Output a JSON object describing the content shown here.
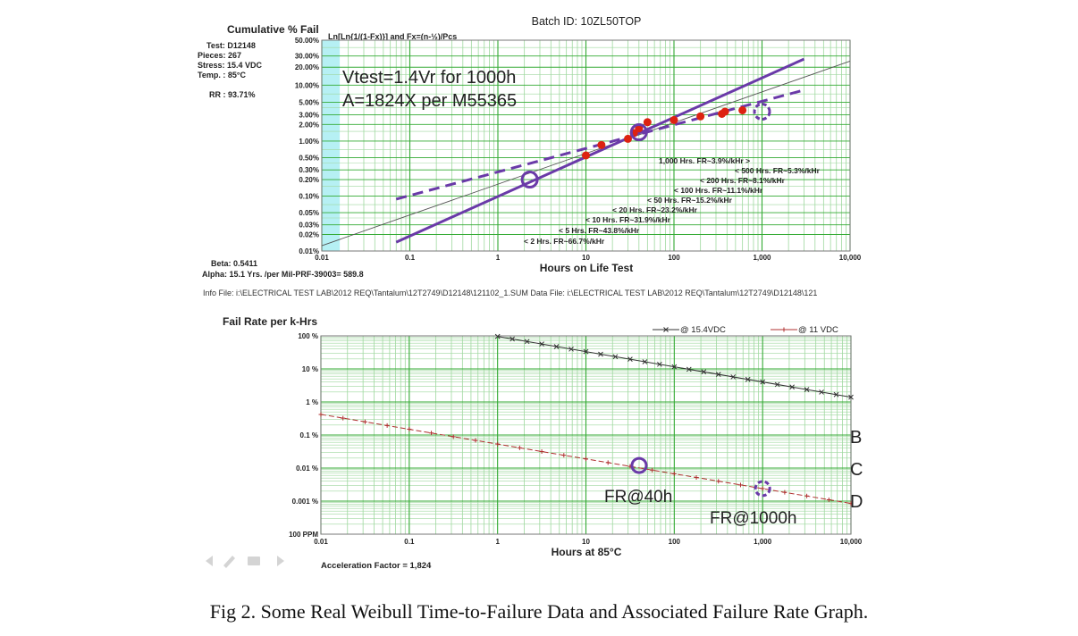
{
  "colors": {
    "grid_major": "#33aa33",
    "grid_minor": "#9fd89f",
    "cyan_band": "#b6f0f4",
    "purple": "#6a3aa8",
    "red_dot": "#dd2211",
    "fit_line": "#555555",
    "series_154": "#333333",
    "series_11": "#b03030"
  },
  "top": {
    "batch_id": "Batch ID: 10ZL50TOP",
    "ylabel": "Cumulative % Fail",
    "formula": "Ln[Ln{1/(1-Fx)}] and Fx=(n-½)/Pcs",
    "test": "Test: D12148",
    "pieces": "Pieces: 267",
    "stress": "Stress: 15.4 VDC",
    "temp": "Temp. : 85°C",
    "rr": "RR : 93.71%",
    "beta": "Beta: 0.5411",
    "alpha": "Alpha: 15.1 Yrs. /per Mil-PRF-39003= 589.8",
    "xlabel": "Hours on Life Test",
    "annotation_line1": "Vtest=1.4Vr for 1000h",
    "annotation_line2": "A=1824X per M55365",
    "info_line": "Info File: i:\\ELECTRICAL TEST LAB\\2012 REQ\\Tantalum\\12T2749\\D12148\\121102_1.SUM    Data File: i:\\ELECTRICAL TEST LAB\\2012 REQ\\Tantalum\\12T2749\\D12148\\121",
    "fr_notes": [
      "1,000 Hrs. FR~3.9%/kHr >",
      "< 500 Hrs. FR~5.3%/kHr",
      "< 200 Hrs. FR~8.1%/kHr",
      "< 100 Hrs. FR~11.1%/kHr",
      "< 50 Hrs. FR~15.2%/kHr",
      "< 20 Hrs. FR~23.2%/kHr",
      "< 10 Hrs. FR~31.9%/kHr",
      "< 5 Hrs. FR~43.8%/kHr",
      "< 2 Hrs. FR~66.7%/kHr"
    ]
  },
  "bottom": {
    "ylabel": "Fail Rate per k-Hrs",
    "xlabel": "Hours at 85°C",
    "accel": "Acceleration Factor = 1,824",
    "label_fr40": "FR@40h",
    "label_fr1000": "FR@1000h",
    "label_b": "B",
    "label_c": "C",
    "label_d": "D",
    "nav_icons": [
      "back-icon",
      "pencil-icon",
      "menu-icon",
      "forward-icon"
    ]
  },
  "caption": "Fig 2.   Some Real Weibull Time-to-Failure Data and Associated Failure Rate Graph.",
  "chart_data": [
    {
      "type": "scatter",
      "title": "Cumulative % Fail",
      "xlabel": "Hours on Life Test",
      "ylabel": "Cumulative % Fail",
      "xscale": "log",
      "yscale": "weibull",
      "xlim": [
        0.01,
        10000
      ],
      "ylim": [
        0.01,
        50
      ],
      "x_ticks": [
        "0.01",
        "0.1",
        "1",
        "10",
        "100",
        "1,000",
        "10,000"
      ],
      "x_tick_values": [
        0.01,
        0.1,
        1,
        10,
        100,
        1000,
        10000
      ],
      "y_ticks": [
        "0.01%",
        "0.02%",
        "0.03%",
        "0.05%",
        "0.10%",
        "0.20%",
        "0.30%",
        "0.50%",
        "1.00%",
        "2.00%",
        "3.00%",
        "5.00%",
        "10.00%",
        "20.00%",
        "30.00%",
        "50.00%"
      ],
      "y_tick_values": [
        0.01,
        0.02,
        0.03,
        0.05,
        0.1,
        0.2,
        0.3,
        0.5,
        1,
        2,
        3,
        5,
        10,
        20,
        30,
        50
      ],
      "grid": true,
      "points": [
        {
          "x": 10,
          "y": 0.55
        },
        {
          "x": 15,
          "y": 0.85
        },
        {
          "x": 30,
          "y": 1.1
        },
        {
          "x": 35,
          "y": 1.4
        },
        {
          "x": 40,
          "y": 1.7
        },
        {
          "x": 50,
          "y": 2.2
        },
        {
          "x": 100,
          "y": 2.4
        },
        {
          "x": 200,
          "y": 2.8
        },
        {
          "x": 350,
          "y": 3.1
        },
        {
          "x": 380,
          "y": 3.4
        },
        {
          "x": 600,
          "y": 3.6
        }
      ],
      "fit_line": [
        {
          "x": 0.01,
          "y": 0.0125
        },
        {
          "x": 10000,
          "y": 25
        }
      ],
      "solid_line": [
        {
          "x": 0.07,
          "y": 0.0145
        },
        {
          "x": 3000,
          "y": 27
        }
      ],
      "dashed_line": [
        {
          "x": 0.07,
          "y": 0.088
        },
        {
          "x": 3000,
          "y": 8.2
        }
      ],
      "circles": [
        {
          "x": 2.3,
          "y": 0.2,
          "style": "solid"
        },
        {
          "x": 40,
          "y": 1.45,
          "style": "solid"
        },
        {
          "x": 1000,
          "y": 3.4,
          "style": "dashed"
        }
      ],
      "cyan_band_x": [
        0.01,
        0.016
      ]
    },
    {
      "type": "line",
      "title": "Fail Rate per k-Hrs",
      "xlabel": "Hours at 85°C",
      "ylabel": "Fail Rate per k-Hrs",
      "xscale": "log",
      "yscale": "log",
      "xlim": [
        0.01,
        10000
      ],
      "ylim": [
        0.0001,
        100
      ],
      "x_ticks": [
        "0.01",
        "0.1",
        "1",
        "10",
        "100",
        "1,000",
        "10,000"
      ],
      "x_tick_values": [
        0.01,
        0.1,
        1,
        10,
        100,
        1000,
        10000
      ],
      "y_ticks": [
        "100 PPM",
        "0.001 %",
        "0.01 %",
        "0.1 %",
        "1 %",
        "10 %",
        "100 %"
      ],
      "y_tick_values": [
        0.0001,
        0.001,
        0.01,
        0.1,
        1,
        10,
        100
      ],
      "grid": true,
      "legend_position": "top-right",
      "series": [
        {
          "name": "@ 15.4VDC",
          "marker": "x",
          "values": [
            {
              "x": 1,
              "y": 96
            },
            {
              "x": 10000,
              "y": 1.4
            }
          ]
        },
        {
          "name": "@ 11 VDC",
          "marker": "+",
          "values": [
            {
              "x": 0.01,
              "y": 0.42
            },
            {
              "x": 10000,
              "y": 0.00085
            }
          ]
        }
      ],
      "circles": [
        {
          "x": 40,
          "y": 0.012,
          "style": "solid"
        },
        {
          "x": 1000,
          "y": 0.0024,
          "style": "dashed"
        }
      ]
    }
  ]
}
